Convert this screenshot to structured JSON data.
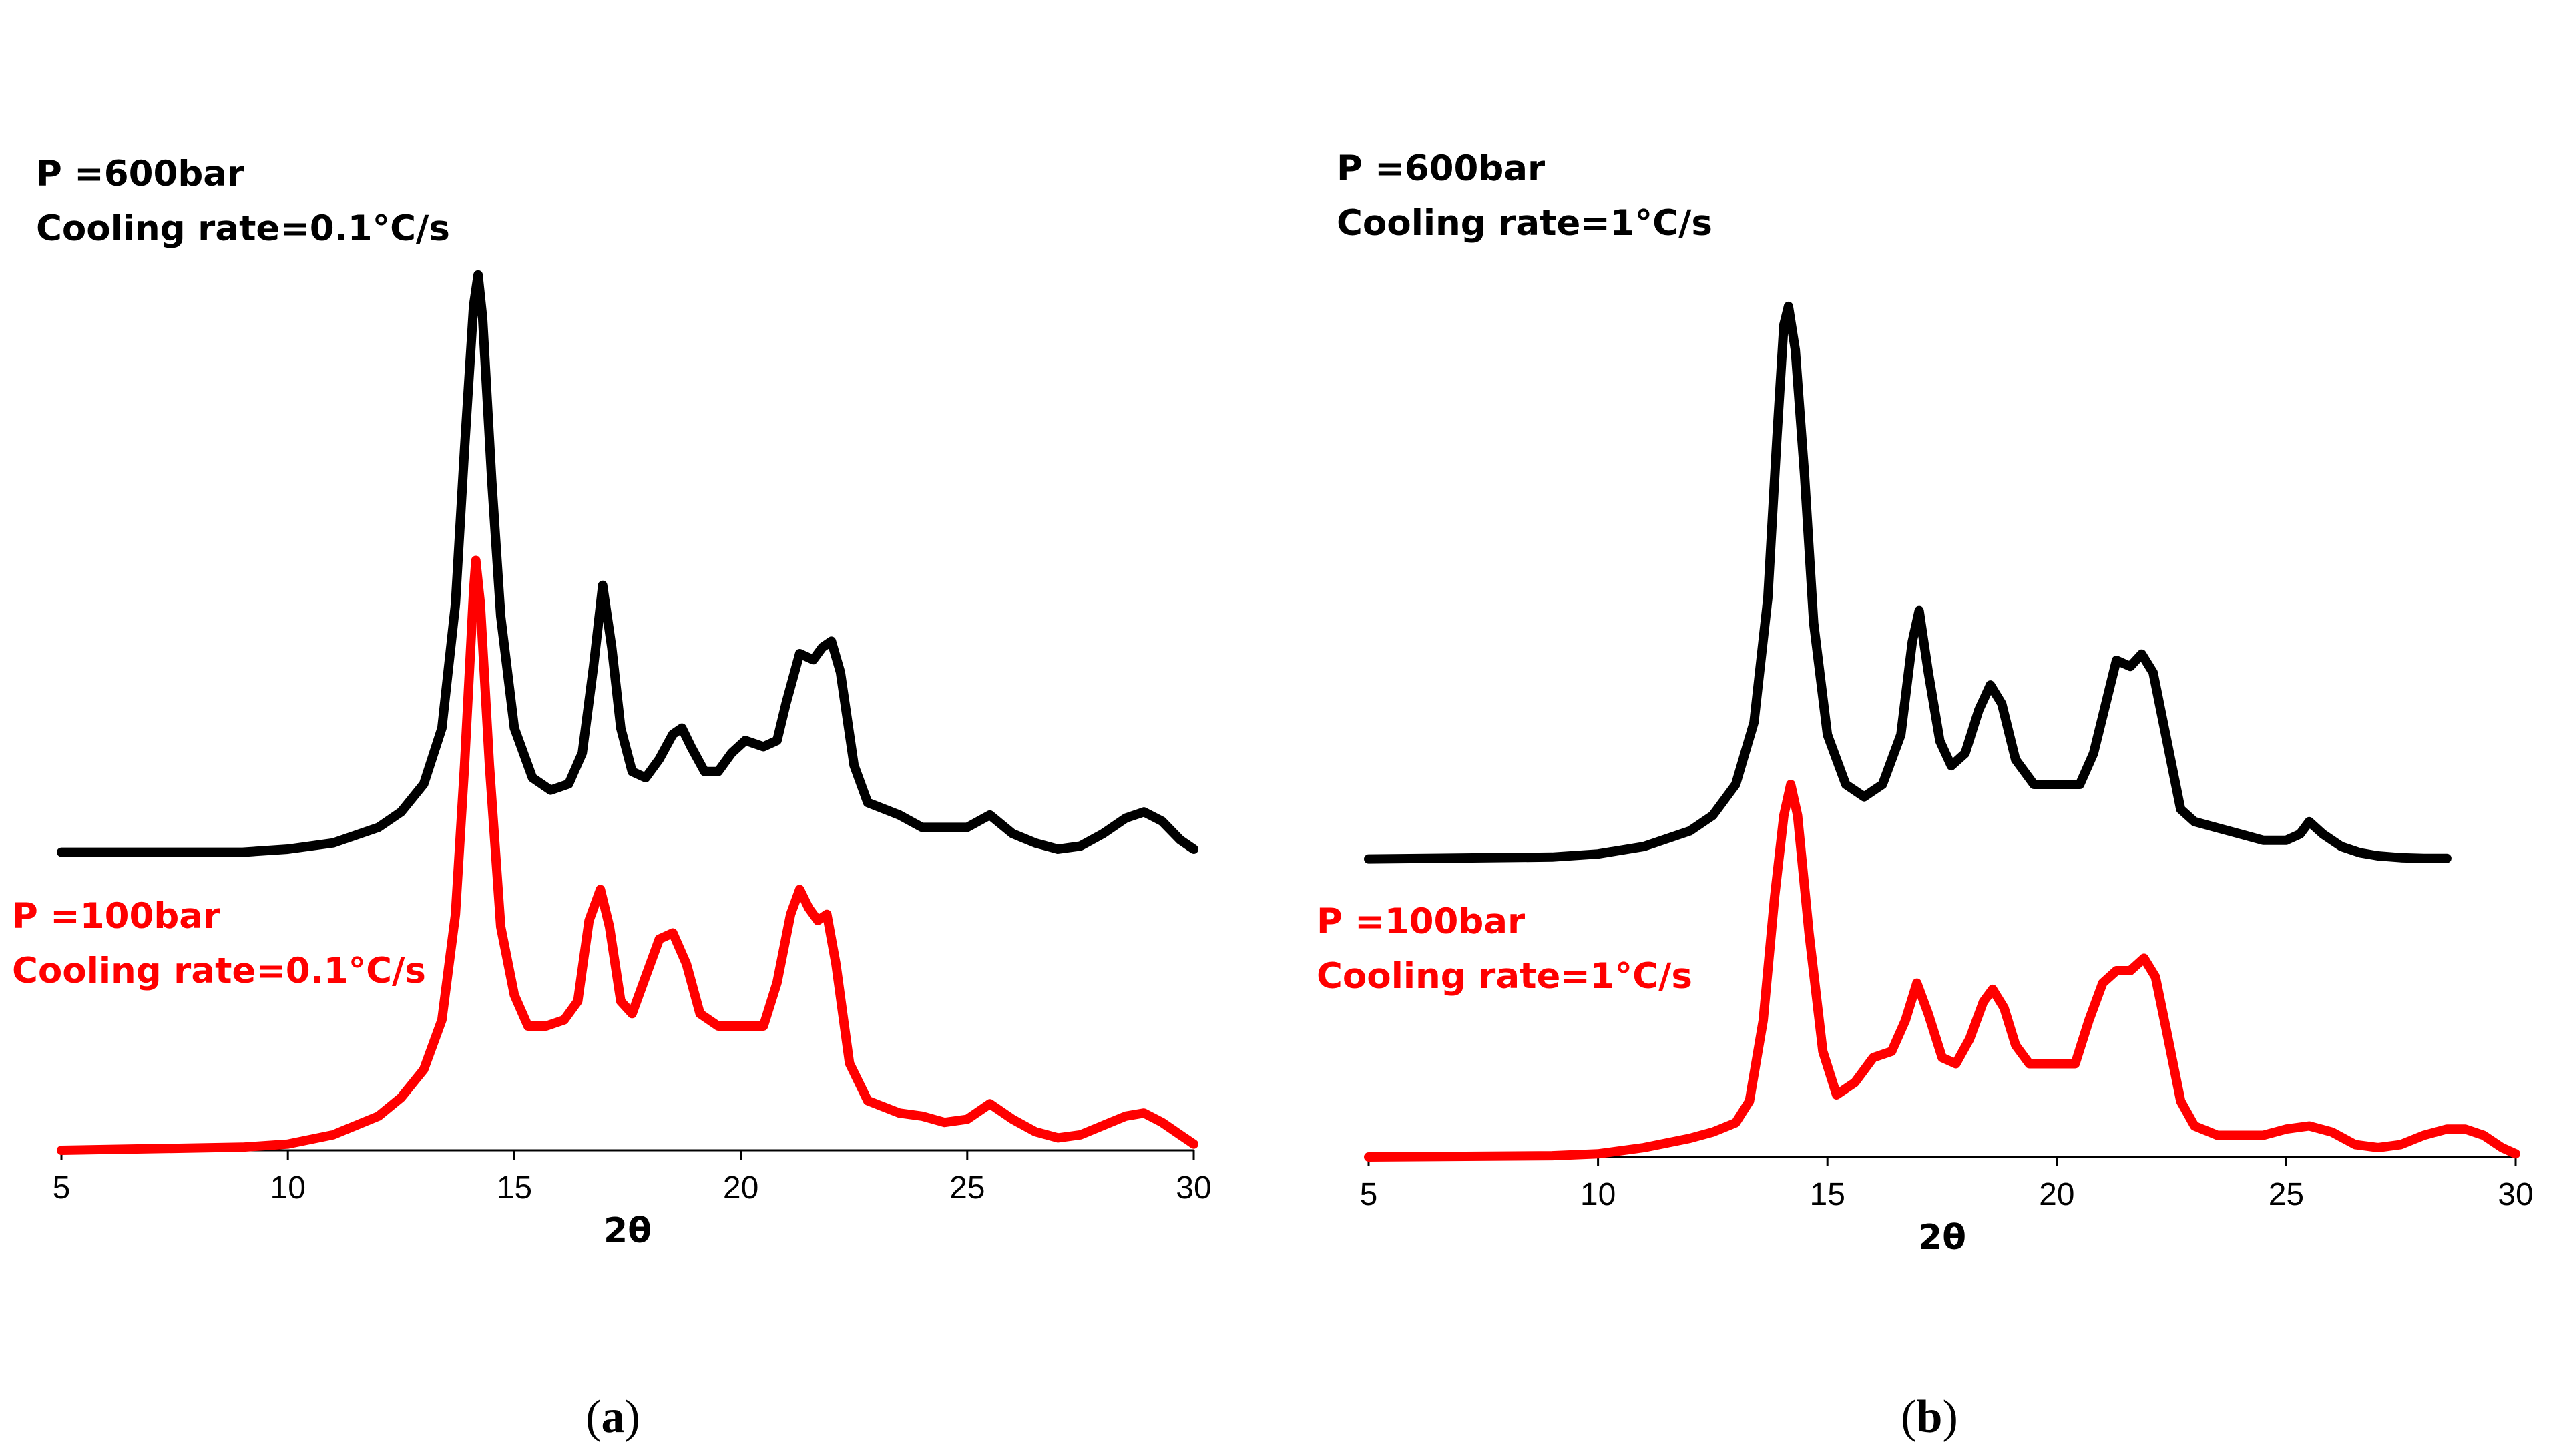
{
  "chart_data": [
    {
      "panel": "(a)",
      "panel_letter": "a",
      "type": "line",
      "xlabel": "2θ",
      "ylabel": "",
      "xlim": [
        5,
        30
      ],
      "ylim": [
        0,
        1
      ],
      "xticks": [
        5,
        10,
        15,
        20,
        25,
        30
      ],
      "grid": false,
      "series": [
        {
          "name": "P =600bar, Cooling rate=0.1°C/s",
          "color": "#000000",
          "offset": 0.48,
          "annotation": [
            "P =600bar",
            "Cooling rate=0.1°C/s"
          ],
          "points": [
            [
              5.0,
              0.0
            ],
            [
              9.0,
              0.0
            ],
            [
              10.0,
              0.005
            ],
            [
              11.0,
              0.015
            ],
            [
              12.0,
              0.04
            ],
            [
              12.5,
              0.065
            ],
            [
              13.0,
              0.11
            ],
            [
              13.4,
              0.2
            ],
            [
              13.7,
              0.4
            ],
            [
              13.9,
              0.65
            ],
            [
              14.1,
              0.88
            ],
            [
              14.2,
              0.93
            ],
            [
              14.3,
              0.86
            ],
            [
              14.5,
              0.6
            ],
            [
              14.7,
              0.38
            ],
            [
              15.0,
              0.2
            ],
            [
              15.4,
              0.12
            ],
            [
              15.8,
              0.1
            ],
            [
              16.2,
              0.11
            ],
            [
              16.5,
              0.16
            ],
            [
              16.75,
              0.3
            ],
            [
              16.95,
              0.43
            ],
            [
              17.15,
              0.33
            ],
            [
              17.35,
              0.2
            ],
            [
              17.6,
              0.13
            ],
            [
              17.9,
              0.12
            ],
            [
              18.2,
              0.15
            ],
            [
              18.5,
              0.19
            ],
            [
              18.7,
              0.2
            ],
            [
              18.9,
              0.17
            ],
            [
              19.2,
              0.13
            ],
            [
              19.5,
              0.13
            ],
            [
              19.8,
              0.16
            ],
            [
              20.1,
              0.18
            ],
            [
              20.5,
              0.17
            ],
            [
              20.8,
              0.18
            ],
            [
              21.0,
              0.24
            ],
            [
              21.3,
              0.32
            ],
            [
              21.6,
              0.31
            ],
            [
              21.8,
              0.33
            ],
            [
              22.0,
              0.34
            ],
            [
              22.2,
              0.29
            ],
            [
              22.5,
              0.14
            ],
            [
              22.8,
              0.08
            ],
            [
              23.5,
              0.06
            ],
            [
              24.0,
              0.04
            ],
            [
              24.5,
              0.04
            ],
            [
              25.0,
              0.04
            ],
            [
              25.5,
              0.06
            ],
            [
              26.0,
              0.03
            ],
            [
              26.5,
              0.015
            ],
            [
              27.0,
              0.005
            ],
            [
              27.5,
              0.01
            ],
            [
              28.0,
              0.03
            ],
            [
              28.5,
              0.055
            ],
            [
              28.9,
              0.065
            ],
            [
              29.3,
              0.05
            ],
            [
              29.7,
              0.02
            ],
            [
              30.0,
              0.005
            ]
          ]
        },
        {
          "name": "P =100bar, Cooling rate=0.1°C/s",
          "color": "#ff0000",
          "offset": 0.0,
          "annotation": [
            "P =100bar",
            "Cooling rate=0.1°C/s"
          ],
          "points": [
            [
              5.0,
              0.0
            ],
            [
              9.0,
              0.005
            ],
            [
              10.0,
              0.01
            ],
            [
              11.0,
              0.025
            ],
            [
              12.0,
              0.055
            ],
            [
              12.5,
              0.085
            ],
            [
              13.0,
              0.13
            ],
            [
              13.4,
              0.21
            ],
            [
              13.7,
              0.38
            ],
            [
              13.9,
              0.62
            ],
            [
              14.1,
              0.9
            ],
            [
              14.15,
              0.95
            ],
            [
              14.25,
              0.88
            ],
            [
              14.45,
              0.62
            ],
            [
              14.7,
              0.36
            ],
            [
              15.0,
              0.25
            ],
            [
              15.3,
              0.2
            ],
            [
              15.7,
              0.2
            ],
            [
              16.1,
              0.21
            ],
            [
              16.4,
              0.24
            ],
            [
              16.65,
              0.37
            ],
            [
              16.9,
              0.42
            ],
            [
              17.1,
              0.36
            ],
            [
              17.35,
              0.24
            ],
            [
              17.6,
              0.22
            ],
            [
              17.9,
              0.28
            ],
            [
              18.2,
              0.34
            ],
            [
              18.5,
              0.35
            ],
            [
              18.8,
              0.3
            ],
            [
              19.1,
              0.22
            ],
            [
              19.5,
              0.2
            ],
            [
              20.0,
              0.2
            ],
            [
              20.5,
              0.2
            ],
            [
              20.8,
              0.27
            ],
            [
              21.1,
              0.38
            ],
            [
              21.3,
              0.42
            ],
            [
              21.5,
              0.39
            ],
            [
              21.7,
              0.37
            ],
            [
              21.9,
              0.38
            ],
            [
              22.1,
              0.3
            ],
            [
              22.4,
              0.14
            ],
            [
              22.8,
              0.08
            ],
            [
              23.5,
              0.06
            ],
            [
              24.0,
              0.055
            ],
            [
              24.5,
              0.045
            ],
            [
              25.0,
              0.05
            ],
            [
              25.5,
              0.075
            ],
            [
              26.0,
              0.05
            ],
            [
              26.5,
              0.03
            ],
            [
              27.0,
              0.02
            ],
            [
              27.5,
              0.025
            ],
            [
              28.0,
              0.04
            ],
            [
              28.5,
              0.055
            ],
            [
              28.9,
              0.06
            ],
            [
              29.3,
              0.045
            ],
            [
              29.7,
              0.025
            ],
            [
              30.0,
              0.01
            ]
          ]
        }
      ],
      "annotations": []
    },
    {
      "panel": "(b)",
      "panel_letter": "b",
      "type": "line",
      "xlabel": "2θ",
      "ylabel": "",
      "xlim": [
        5,
        30
      ],
      "ylim": [
        0,
        1
      ],
      "xticks": [
        5,
        10,
        15,
        20,
        25,
        30
      ],
      "grid": false,
      "series": [
        {
          "name": "P =600bar, Cooling rate=1°C/s",
          "color": "#000000",
          "offset": 0.48,
          "annotation": [
            "P =600bar",
            "Cooling rate=1°C/s"
          ],
          "points": [
            [
              5.0,
              0.0
            ],
            [
              9.0,
              0.003
            ],
            [
              10.0,
              0.008
            ],
            [
              11.0,
              0.02
            ],
            [
              12.0,
              0.045
            ],
            [
              12.5,
              0.07
            ],
            [
              13.0,
              0.12
            ],
            [
              13.4,
              0.22
            ],
            [
              13.7,
              0.42
            ],
            [
              13.9,
              0.68
            ],
            [
              14.05,
              0.86
            ],
            [
              14.15,
              0.89
            ],
            [
              14.3,
              0.82
            ],
            [
              14.5,
              0.62
            ],
            [
              14.7,
              0.38
            ],
            [
              15.0,
              0.2
            ],
            [
              15.4,
              0.12
            ],
            [
              15.8,
              0.1
            ],
            [
              16.2,
              0.12
            ],
            [
              16.6,
              0.2
            ],
            [
              16.85,
              0.35
            ],
            [
              17.0,
              0.4
            ],
            [
              17.2,
              0.3
            ],
            [
              17.45,
              0.19
            ],
            [
              17.7,
              0.15
            ],
            [
              18.0,
              0.17
            ],
            [
              18.3,
              0.24
            ],
            [
              18.55,
              0.28
            ],
            [
              18.8,
              0.25
            ],
            [
              19.1,
              0.16
            ],
            [
              19.5,
              0.12
            ],
            [
              20.0,
              0.12
            ],
            [
              20.5,
              0.12
            ],
            [
              20.8,
              0.17
            ],
            [
              21.1,
              0.26
            ],
            [
              21.3,
              0.32
            ],
            [
              21.6,
              0.31
            ],
            [
              21.85,
              0.33
            ],
            [
              22.1,
              0.3
            ],
            [
              22.4,
              0.19
            ],
            [
              22.7,
              0.08
            ],
            [
              23.0,
              0.06
            ],
            [
              23.5,
              0.05
            ],
            [
              24.0,
              0.04
            ],
            [
              24.5,
              0.03
            ],
            [
              25.0,
              0.03
            ],
            [
              25.3,
              0.04
            ],
            [
              25.5,
              0.06
            ],
            [
              25.8,
              0.04
            ],
            [
              26.2,
              0.02
            ],
            [
              26.6,
              0.01
            ],
            [
              27.0,
              0.005
            ],
            [
              27.5,
              0.002
            ],
            [
              28.0,
              0.001
            ],
            [
              28.5,
              0.001
            ]
          ]
        },
        {
          "name": "P =100bar, Cooling rate=1°C/s",
          "color": "#ff0000",
          "offset": 0.0,
          "annotation": [
            "P =100bar",
            "Cooling rate=1°C/s"
          ],
          "points": [
            [
              5.0,
              0.0
            ],
            [
              9.0,
              0.002
            ],
            [
              10.0,
              0.005
            ],
            [
              11.0,
              0.015
            ],
            [
              12.0,
              0.03
            ],
            [
              12.5,
              0.04
            ],
            [
              13.0,
              0.055
            ],
            [
              13.3,
              0.09
            ],
            [
              13.6,
              0.22
            ],
            [
              13.85,
              0.42
            ],
            [
              14.05,
              0.55
            ],
            [
              14.2,
              0.6
            ],
            [
              14.35,
              0.55
            ],
            [
              14.6,
              0.36
            ],
            [
              14.9,
              0.17
            ],
            [
              15.2,
              0.1
            ],
            [
              15.6,
              0.12
            ],
            [
              16.0,
              0.16
            ],
            [
              16.4,
              0.17
            ],
            [
              16.7,
              0.22
            ],
            [
              16.95,
              0.28
            ],
            [
              17.2,
              0.23
            ],
            [
              17.5,
              0.16
            ],
            [
              17.8,
              0.15
            ],
            [
              18.1,
              0.19
            ],
            [
              18.4,
              0.25
            ],
            [
              18.6,
              0.27
            ],
            [
              18.85,
              0.24
            ],
            [
              19.1,
              0.18
            ],
            [
              19.4,
              0.15
            ],
            [
              20.0,
              0.15
            ],
            [
              20.4,
              0.15
            ],
            [
              20.7,
              0.22
            ],
            [
              21.0,
              0.28
            ],
            [
              21.3,
              0.3
            ],
            [
              21.6,
              0.3
            ],
            [
              21.9,
              0.32
            ],
            [
              22.15,
              0.29
            ],
            [
              22.4,
              0.2
            ],
            [
              22.7,
              0.09
            ],
            [
              23.0,
              0.05
            ],
            [
              23.5,
              0.035
            ],
            [
              24.0,
              0.035
            ],
            [
              24.5,
              0.035
            ],
            [
              25.0,
              0.045
            ],
            [
              25.5,
              0.05
            ],
            [
              26.0,
              0.04
            ],
            [
              26.5,
              0.02
            ],
            [
              27.0,
              0.015
            ],
            [
              27.5,
              0.02
            ],
            [
              28.0,
              0.035
            ],
            [
              28.5,
              0.045
            ],
            [
              28.9,
              0.045
            ],
            [
              29.3,
              0.035
            ],
            [
              29.7,
              0.015
            ],
            [
              30.0,
              0.005
            ]
          ]
        }
      ],
      "annotations": []
    }
  ]
}
